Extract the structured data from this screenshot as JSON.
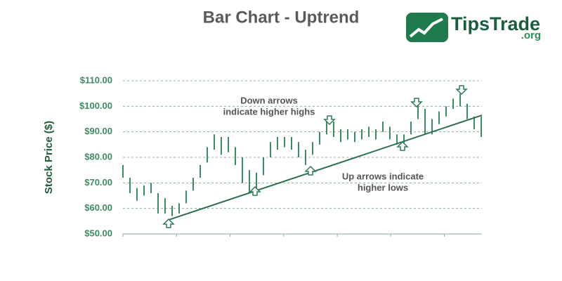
{
  "chart_data": {
    "type": "ohlc",
    "title": "Bar Chart - Uptrend",
    "ylabel": "Stock Price ($)",
    "logo": {
      "name": "TipsTrade",
      "suffix": ".org"
    },
    "color": "#3c8c62",
    "ylim": [
      50,
      110
    ],
    "yticks": [
      {
        "value": 50,
        "label": "$50.00"
      },
      {
        "value": 60,
        "label": "$60.00"
      },
      {
        "value": 70,
        "label": "$70.00"
      },
      {
        "value": 80,
        "label": "$80.00"
      },
      {
        "value": 90,
        "label": "$90.00"
      },
      {
        "value": 100,
        "label": "$100.00"
      },
      {
        "value": 110,
        "label": "$110.00"
      }
    ],
    "grid": true,
    "high": [
      77,
      72,
      68,
      69,
      70,
      66,
      64,
      61,
      62,
      67,
      72,
      77,
      84,
      89,
      88,
      88,
      84,
      80,
      75,
      74,
      80,
      86,
      88,
      88,
      88,
      86,
      83,
      86,
      90,
      94,
      94,
      91,
      91,
      90,
      91,
      92,
      91,
      94,
      92,
      89,
      89,
      94,
      101,
      99,
      95,
      98,
      100,
      103,
      105,
      101,
      96,
      96
    ],
    "low": [
      72,
      66,
      63,
      65,
      66,
      58,
      58,
      57,
      58,
      62,
      67,
      72,
      78,
      83,
      81,
      82,
      77,
      70,
      66,
      67,
      73,
      80,
      83,
      84,
      83,
      80,
      77,
      81,
      85,
      89,
      88,
      86,
      87,
      86,
      87,
      88,
      87,
      90,
      87,
      85,
      85,
      89,
      95,
      89,
      89,
      93,
      96,
      99,
      100,
      95,
      91,
      88
    ],
    "trendline": {
      "x": [
        6.5,
        51.1
      ],
      "values": [
        55.5,
        96.5
      ],
      "color": "#2a6e4b"
    },
    "annotations": [
      "Down arrows",
      "indicate higher highs",
      "Up arrows indicate",
      "higher lows"
    ]
  }
}
